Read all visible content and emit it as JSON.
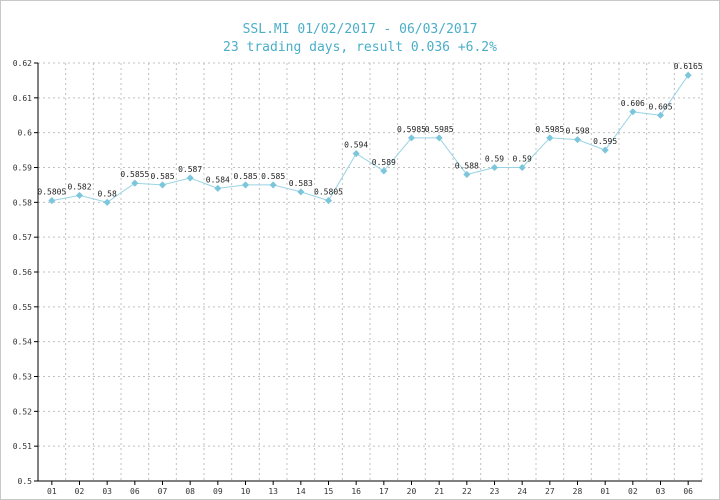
{
  "header": {
    "title": "SSL.MI 01/02/2017 - 06/03/2017",
    "subtitle": "23 trading days, result 0.036 +6.2%"
  },
  "colors": {
    "title": "#4aaec8",
    "line": "#9ad4e4",
    "marker": "#7cc6dc",
    "grid": "#c0c0c0",
    "axis": "#000000"
  },
  "chart_data": {
    "type": "line",
    "title": "SSL.MI 01/02/2017 - 06/03/2017",
    "subtitle": "23 trading days, result 0.036 +6.2%",
    "xlabel": "",
    "ylabel": "",
    "ylim": [
      0.5,
      0.62
    ],
    "yticks": [
      "0.5",
      "0.51",
      "0.52",
      "0.53",
      "0.54",
      "0.55",
      "0.56",
      "0.57",
      "0.58",
      "0.59",
      "0.6",
      "0.61",
      "0.62"
    ],
    "grid": true,
    "categories": [
      "01",
      "02",
      "03",
      "06",
      "07",
      "08",
      "09",
      "10",
      "13",
      "14",
      "15",
      "16",
      "17",
      "20",
      "21",
      "22",
      "23",
      "24",
      "27",
      "28",
      "01",
      "02",
      "03",
      "06"
    ],
    "values": [
      0.5805,
      0.582,
      0.58,
      0.5855,
      0.585,
      0.587,
      0.584,
      0.585,
      0.585,
      0.583,
      0.5805,
      0.594,
      0.589,
      0.5985,
      0.5985,
      0.588,
      0.59,
      0.59,
      0.5985,
      0.598,
      0.595,
      0.606,
      0.605,
      0.6165
    ],
    "labels": [
      "0.5805",
      "0.582",
      "0.58",
      "0.5855",
      "0.585",
      "0.587",
      "0.584",
      "0.585",
      "0.585",
      "0.583",
      "0.5805",
      "0.594",
      "0.589",
      "0.5985",
      "0.5985",
      "0.588",
      "0.59",
      "0.59",
      "0.5985",
      "0.598",
      "0.595",
      "0.606",
      "0.605",
      "0.6165"
    ]
  }
}
